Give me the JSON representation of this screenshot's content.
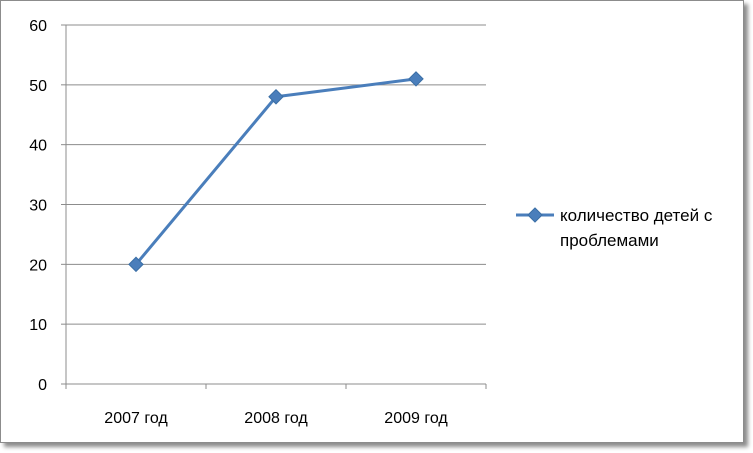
{
  "chart_data": {
    "type": "line",
    "categories": [
      "2007 год",
      "2008 год",
      "2009 год"
    ],
    "series": [
      {
        "name": "количество детей с проблемами",
        "values": [
          20,
          48,
          51
        ],
        "color": "#4a7ebb"
      }
    ],
    "ylim": [
      0,
      60
    ],
    "yticks": [
      0,
      10,
      20,
      30,
      40,
      50,
      60
    ],
    "grid": true,
    "legend_position": "right",
    "title": "",
    "xlabel": "",
    "ylabel": ""
  },
  "legend": {
    "line1": "количество детей с",
    "line2": "проблемами"
  }
}
